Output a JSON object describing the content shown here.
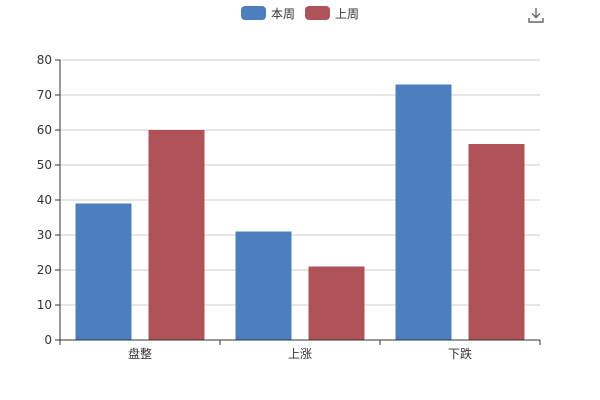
{
  "toolbar": {
    "download_icon": "download-icon"
  },
  "colors": {
    "series1": "#4d7ebd",
    "series2": "#b05358",
    "axis": "#333333",
    "grid": "#cccccc",
    "text": "#333333"
  },
  "legend": {
    "items": [
      {
        "label": "本周"
      },
      {
        "label": "上周"
      }
    ]
  },
  "chart_data": {
    "type": "bar",
    "title": "",
    "xlabel": "",
    "ylabel": "",
    "categories": [
      "盘整",
      "上涨",
      "下跌"
    ],
    "series": [
      {
        "name": "本周",
        "values": [
          39,
          31,
          73
        ]
      },
      {
        "name": "上周",
        "values": [
          60,
          21,
          56
        ]
      }
    ],
    "ylim": [
      0,
      80
    ],
    "yticks": [
      0,
      10,
      20,
      30,
      40,
      50,
      60,
      70,
      80
    ],
    "grid": true,
    "legend_position": "top-center"
  }
}
